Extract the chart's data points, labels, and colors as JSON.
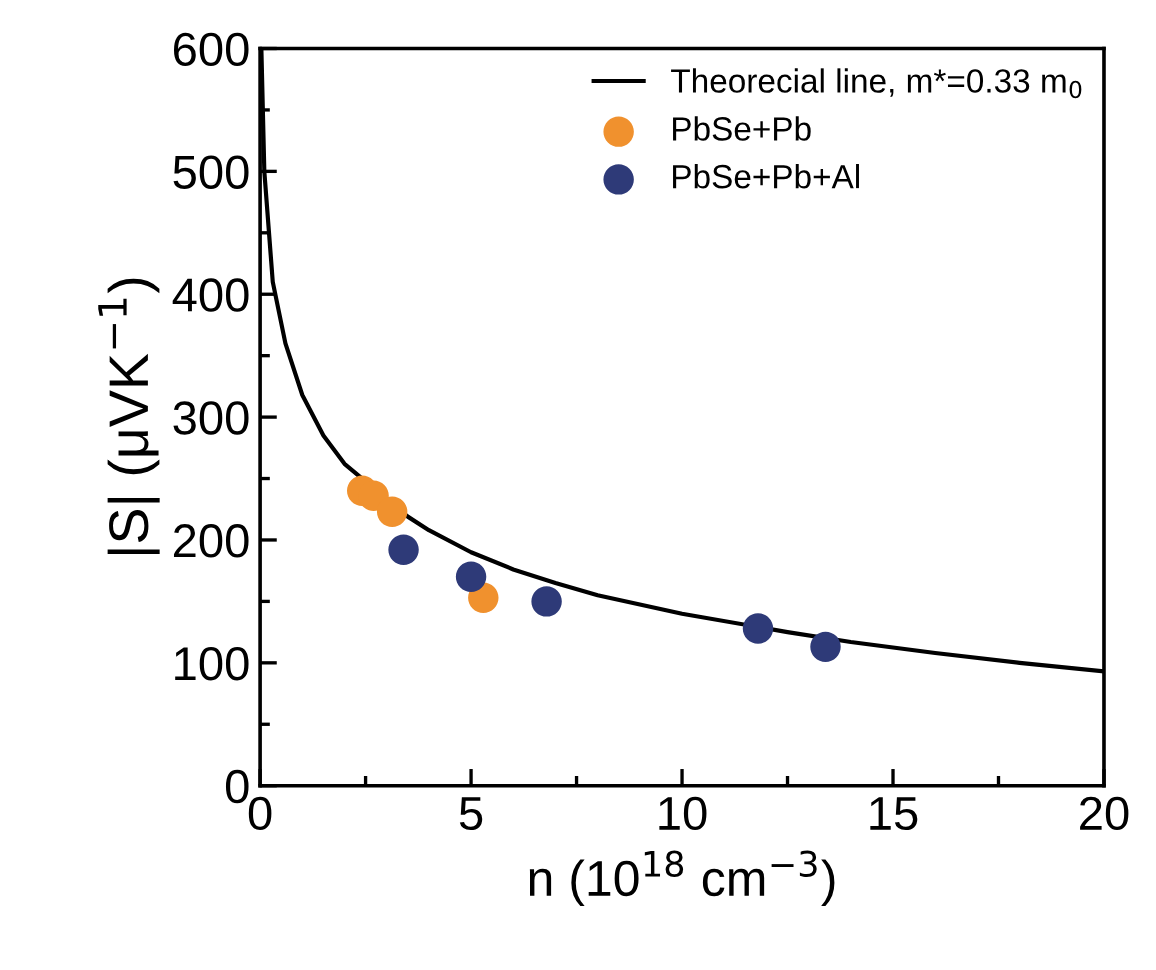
{
  "chart_data": {
    "type": "scatter",
    "xlabel": "n (10$^{18}$ cm$^{−3}$)",
    "ylabel": "|S| (μVK$^{−1}$)",
    "xlim": [
      0,
      20
    ],
    "ylim": [
      0,
      600
    ],
    "xticks": [
      0,
      5,
      10,
      15,
      20
    ],
    "yticks": [
      0,
      100,
      200,
      300,
      400,
      500,
      600
    ],
    "grid": false,
    "legend": "top right",
    "marker": "circle",
    "series": [
      {
        "name": "Theorecial line, m*=0.33 m$_{0}$",
        "type": "line",
        "color": "#000000",
        "line_style": "solid",
        "marker": "none",
        "x": [
          0.03,
          0.1,
          0.3,
          0.6,
          1,
          1.5,
          2,
          3.5,
          4,
          5,
          6,
          7,
          8,
          10,
          12.5,
          14,
          16,
          18,
          20
        ],
        "values": [
          600,
          500,
          410,
          360,
          318,
          285,
          262,
          219,
          208,
          190,
          176,
          165,
          155,
          140,
          125,
          117,
          108,
          100,
          93
        ]
      },
      {
        "name": "PbSe+Pb",
        "color": "#f0912e",
        "x": [
          2.42,
          2.69,
          3.13,
          5.29
        ],
        "values": [
          240,
          236,
          223,
          153
        ]
      },
      {
        "name": "PbSe+Pb+Al",
        "color": "#2e3a78",
        "x": [
          3.4,
          5.0,
          6.79,
          11.8,
          13.4
        ],
        "values": [
          192,
          170,
          150,
          128,
          113
        ]
      }
    ]
  }
}
